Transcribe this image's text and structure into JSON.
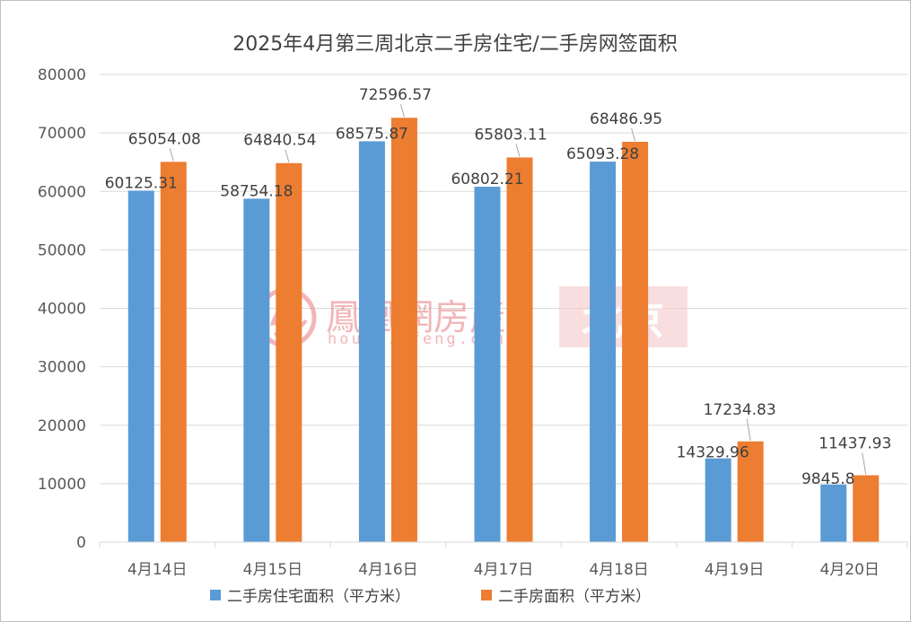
{
  "chart_data": {
    "type": "bar",
    "title": "2025年4月第三周北京二手房住宅/二手房网签面积",
    "xlabel": "",
    "ylabel": "",
    "categories": [
      "4月14日",
      "4月15日",
      "4月16日",
      "4月17日",
      "4月18日",
      "4月19日",
      "4月20日"
    ],
    "ylim": [
      0,
      80000
    ],
    "yticks": [
      "0",
      "10000",
      "20000",
      "30000",
      "40000",
      "50000",
      "60000",
      "70000",
      "80000"
    ],
    "grid": true,
    "legend_position": "bottom",
    "series": [
      {
        "name": "二手房住宅面积（平方米）",
        "color": "#5b9bd5",
        "values": [
          60125.31,
          58754.18,
          68575.87,
          60802.21,
          65093.28,
          14329.96,
          9845.8
        ],
        "labels": [
          "60125.31",
          "58754.18",
          "68575.87",
          "60802.21",
          "65093.28",
          "14329.96",
          "9845.8"
        ]
      },
      {
        "name": "二手房面积（平方米）",
        "color": "#ed7d31",
        "values": [
          65054.08,
          64840.54,
          72596.57,
          65803.11,
          68486.95,
          17234.83,
          11437.93
        ],
        "labels": [
          "65054.08",
          "64840.54",
          "72596.57",
          "65803.11",
          "68486.95",
          "17234.83",
          "11437.93"
        ]
      }
    ]
  },
  "watermark": {
    "brand": "鳳凰網房產",
    "domain": "house.ifeng.com",
    "city": "北京",
    "logo_icon": "phoenix-logo-icon",
    "brand_color": "#e8868a",
    "city_bg_color": "#f6c9cb"
  }
}
